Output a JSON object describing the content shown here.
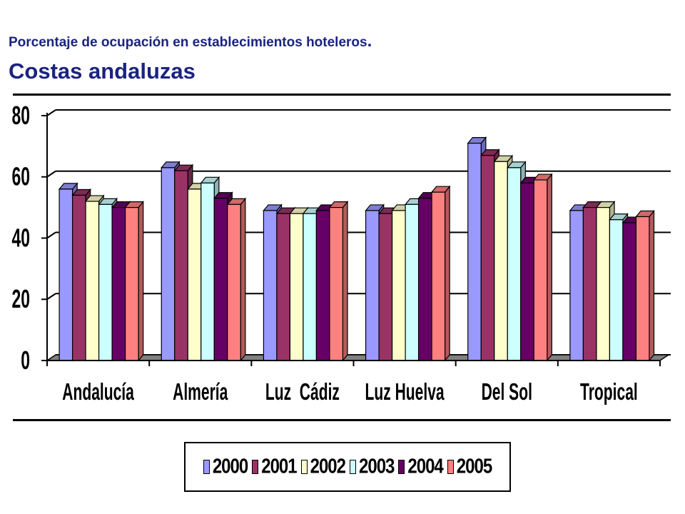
{
  "title": "Porcentaje  de ocupación en establecimientos hoteleros",
  "title_punct": ".",
  "subtitle": "Costas andaluzas",
  "chart_data": {
    "type": "bar",
    "categories": [
      "Andalucía",
      "Almería",
      "Luz  Cádiz",
      "Luz Huelva",
      "Del Sol",
      "Tropical"
    ],
    "series": [
      {
        "name": "2000",
        "color": "#9999ff",
        "values": [
          56,
          63,
          49,
          49,
          71,
          49
        ]
      },
      {
        "name": "2001",
        "color": "#993366",
        "values": [
          54,
          62,
          48,
          48,
          67,
          50
        ]
      },
      {
        "name": "2002",
        "color": "#ffffcc",
        "values": [
          52,
          56,
          48,
          49,
          65,
          50
        ]
      },
      {
        "name": "2003",
        "color": "#ccffff",
        "values": [
          51,
          58,
          48,
          51,
          63,
          46
        ]
      },
      {
        "name": "2004",
        "color": "#660066",
        "values": [
          50,
          53,
          49,
          53,
          58,
          45
        ]
      },
      {
        "name": "2005",
        "color": "#ff8080",
        "values": [
          50,
          51,
          50,
          55,
          59,
          47
        ]
      }
    ],
    "yticks": [
      0,
      20,
      40,
      60,
      80
    ],
    "ylim": [
      0,
      80
    ],
    "grid": true,
    "legend_position": "bottom"
  }
}
